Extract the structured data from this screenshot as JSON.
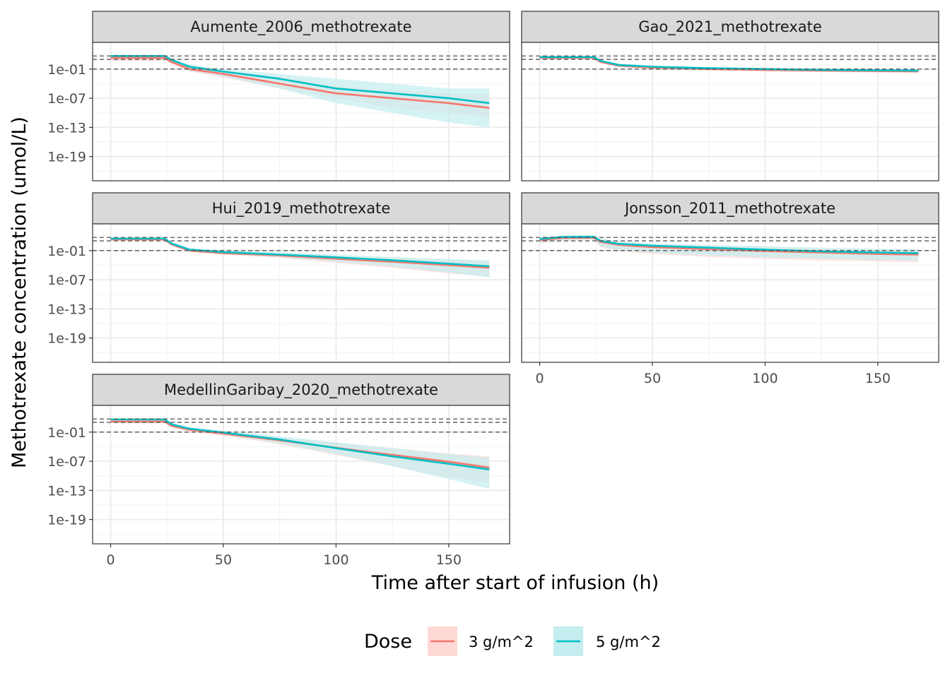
{
  "chart_data": {
    "type": "line",
    "xlabel": "Time after start of infusion (h)",
    "ylabel": "Methotrexate concentration (umol/L)",
    "x_ticks": [
      0,
      50,
      100,
      150
    ],
    "y_ticks": [
      1e-19,
      1e-13,
      1e-07,
      0.1
    ],
    "y_tick_labels": [
      "1e-19",
      "1e-13",
      "1e-07",
      "1e-01"
    ],
    "y_scale": "log10",
    "xlim": [
      -8,
      177
    ],
    "ylim_log10": [
      -24,
      4.5
    ],
    "reference_lines": [
      0.1,
      10,
      50
    ],
    "legend": {
      "title": "Dose",
      "position": "bottom",
      "entries": [
        {
          "label": "3 g/m^2",
          "color": "#F8766D",
          "fill": "#FFD9D6"
        },
        {
          "label": "5 g/m^2",
          "color": "#00BFC4",
          "fill": "#C4EEEF"
        }
      ]
    },
    "panels": [
      {
        "title": "Aumente_2006_methotrexate",
        "series": [
          {
            "name": "3 g/m^2",
            "x": [
              0,
              24,
              27,
              35,
              50,
              75,
              100,
              125,
              150,
              168
            ],
            "y": [
              20,
              20,
              3.0,
              0.1,
              0.01,
              0.0001,
              1e-06,
              1e-07,
              1e-08,
              1e-09
            ],
            "lo": [
              5,
              5,
              1.0,
              0.03,
              0.002,
              1e-05,
              1e-07,
              1e-09,
              1e-10,
              1e-11
            ],
            "hi": [
              30,
              30,
              8.0,
              0.5,
              0.05,
              0.003,
              3e-05,
              5e-06,
              1e-06,
              1e-06
            ]
          },
          {
            "name": "5 g/m^2",
            "x": [
              0,
              24,
              27,
              35,
              50,
              75,
              100,
              125,
              150,
              168
            ],
            "y": [
              50,
              50,
              8.0,
              0.3,
              0.03,
              0.001,
              1e-05,
              1e-06,
              1e-07,
              1e-08
            ],
            "lo": [
              30,
              30,
              3.0,
              0.05,
              0.003,
              1e-05,
              1e-08,
              1e-10,
              1e-12,
              1e-13
            ],
            "hi": [
              60,
              60,
              15,
              1.0,
              0.1,
              0.01,
              0.001,
              0.0001,
              1e-05,
              1e-05
            ]
          }
        ]
      },
      {
        "title": "Gao_2021_methotrexate",
        "series": [
          {
            "name": "3 g/m^2",
            "x": [
              0,
              24,
              27,
              35,
              50,
              75,
              100,
              125,
              150,
              168
            ],
            "y": [
              20,
              20,
              3.0,
              0.5,
              0.2,
              0.1,
              0.07,
              0.05,
              0.04,
              0.035
            ],
            "lo": [
              12,
              12,
              2.0,
              0.3,
              0.1,
              0.05,
              0.03,
              0.025,
              0.02,
              0.015
            ],
            "hi": [
              30,
              30,
              5.0,
              1.0,
              0.35,
              0.18,
              0.12,
              0.09,
              0.07,
              0.06
            ]
          },
          {
            "name": "5 g/m^2",
            "x": [
              0,
              24,
              27,
              35,
              50,
              75,
              100,
              125,
              150,
              168
            ],
            "y": [
              30,
              30,
              5.0,
              0.7,
              0.3,
              0.15,
              0.1,
              0.07,
              0.055,
              0.05
            ],
            "lo": [
              20,
              20,
              3.0,
              0.4,
              0.15,
              0.07,
              0.05,
              0.035,
              0.025,
              0.02
            ],
            "hi": [
              45,
              45,
              8.0,
              1.5,
              0.5,
              0.25,
              0.18,
              0.12,
              0.09,
              0.08
            ]
          }
        ]
      },
      {
        "title": "Hui_2019_methotrexate",
        "series": [
          {
            "name": "3 g/m^2",
            "x": [
              0,
              24,
              27,
              35,
              50,
              75,
              100,
              125,
              150,
              168
            ],
            "y": [
              20,
              20,
              2.0,
              0.1,
              0.03,
              0.01,
              0.002,
              0.0005,
              0.0001,
              3e-05
            ],
            "lo": [
              10,
              10,
              1.0,
              0.05,
              0.015,
              0.003,
              0.0003,
              3e-05,
              2e-06,
              5e-07
            ],
            "hi": [
              30,
              30,
              4.0,
              0.25,
              0.08,
              0.03,
              0.008,
              0.003,
              0.001,
              0.0006
            ]
          },
          {
            "name": "5 g/m^2",
            "x": [
              0,
              24,
              27,
              35,
              50,
              75,
              100,
              125,
              150,
              168
            ],
            "y": [
              30,
              30,
              3.0,
              0.15,
              0.05,
              0.015,
              0.004,
              0.001,
              0.0002,
              6e-05
            ],
            "lo": [
              18,
              18,
              1.5,
              0.08,
              0.02,
              0.004,
              0.0005,
              5e-05,
              3e-06,
              3e-07
            ],
            "hi": [
              40,
              40,
              6.0,
              0.35,
              0.12,
              0.05,
              0.015,
              0.005,
              0.002,
              0.001
            ]
          }
        ]
      },
      {
        "title": "Jonsson_2011_methotrexate",
        "series": [
          {
            "name": "3 g/m^2",
            "x": [
              0,
              10,
              24,
              27,
              35,
              50,
              75,
              100,
              125,
              150,
              168
            ],
            "y": [
              15,
              40,
              45,
              6.0,
              1.5,
              0.5,
              0.2,
              0.08,
              0.04,
              0.02,
              0.015
            ],
            "lo": [
              3,
              10,
              15,
              0.5,
              0.08,
              0.02,
              0.005,
              0.002,
              0.001,
              0.0006,
              0.0004
            ],
            "hi": [
              40,
              100,
              110,
              18,
              5.0,
              2.0,
              1.0,
              0.5,
              0.25,
              0.15,
              0.12
            ]
          },
          {
            "name": "5 g/m^2",
            "x": [
              0,
              10,
              24,
              27,
              35,
              50,
              75,
              100,
              125,
              150,
              168
            ],
            "y": [
              25,
              60,
              70,
              10,
              2.5,
              1.0,
              0.4,
              0.15,
              0.07,
              0.04,
              0.03
            ],
            "lo": [
              4,
              15,
              20,
              0.8,
              0.12,
              0.04,
              0.01,
              0.004,
              0.002,
              0.0012,
              0.0008
            ],
            "hi": [
              60,
              150,
              160,
              30,
              8.0,
              3.0,
              1.5,
              0.8,
              0.4,
              0.25,
              0.2
            ]
          }
        ]
      },
      {
        "title": "MedellinGaribay_2020_methotrexate",
        "series": [
          {
            "name": "3 g/m^2",
            "x": [
              0,
              24,
              27,
              35,
              50,
              75,
              100,
              125,
              150,
              168
            ],
            "y": [
              15,
              15,
              2.0,
              0.3,
              0.05,
              0.002,
              6e-05,
              2e-06,
              8e-08,
              5e-09
            ],
            "lo": [
              8,
              8,
              1.0,
              0.12,
              0.02,
              0.0003,
              2e-06,
              1e-08,
              5e-11,
              3e-12
            ],
            "hi": [
              25,
              25,
              3.5,
              0.6,
              0.12,
              0.008,
              0.0006,
              5e-05,
              4e-06,
              1e-06
            ]
          },
          {
            "name": "5 g/m^2",
            "x": [
              0,
              24,
              27,
              35,
              50,
              75,
              100,
              125,
              150,
              168
            ],
            "y": [
              40,
              40,
              4.0,
              0.5,
              0.08,
              0.003,
              5e-05,
              1e-06,
              3e-08,
              2e-09
            ],
            "lo": [
              25,
              25,
              2.0,
              0.2,
              0.03,
              0.0005,
              3e-06,
              1e-08,
              2e-11,
              2e-13
            ],
            "hi": [
              55,
              55,
              7.0,
              1.0,
              0.2,
              0.015,
              0.0008,
              5e-05,
              3e-06,
              5e-07
            ]
          }
        ]
      }
    ]
  }
}
